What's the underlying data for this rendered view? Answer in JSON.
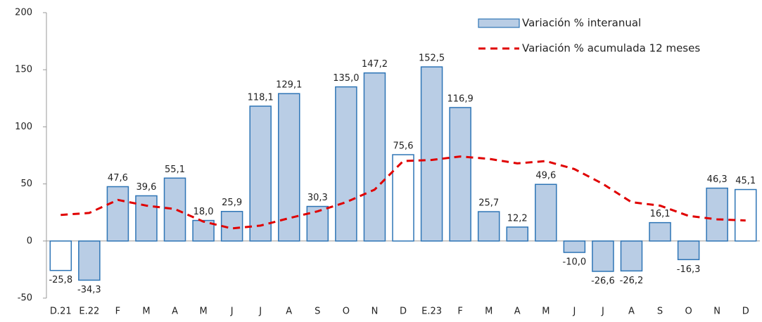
{
  "chart_data": {
    "type": "bar-line",
    "categories": [
      "D.21",
      "E.22",
      "F",
      "M",
      "A",
      "M",
      "J",
      "J",
      "A",
      "S",
      "O",
      "N",
      "D",
      "E.23",
      "F",
      "M",
      "A",
      "M",
      "J",
      "J",
      "A",
      "S",
      "O",
      "N",
      "D"
    ],
    "series": [
      {
        "name": "Variación % interanual",
        "type": "bar",
        "color": "#b9cde5",
        "edge_color": "#2e75b6",
        "colors": [
          "#ffffff",
          "#b9cde5",
          "#b9cde5",
          "#b9cde5",
          "#b9cde5",
          "#b9cde5",
          "#b9cde5",
          "#b9cde5",
          "#b9cde5",
          "#b9cde5",
          "#b9cde5",
          "#b9cde5",
          "#ffffff",
          "#b9cde5",
          "#b9cde5",
          "#b9cde5",
          "#b9cde5",
          "#b9cde5",
          "#b9cde5",
          "#b9cde5",
          "#b9cde5",
          "#b9cde5",
          "#b9cde5",
          "#b9cde5",
          "#ffffff"
        ],
        "values": [
          -25.8,
          -34.3,
          47.6,
          39.6,
          55.1,
          18.0,
          25.9,
          118.1,
          129.1,
          30.3,
          135.0,
          147.2,
          75.6,
          152.5,
          116.9,
          25.7,
          12.2,
          49.6,
          -10.0,
          -26.6,
          -26.2,
          16.1,
          -16.3,
          46.3,
          45.1
        ],
        "value_labels": [
          "-25,8",
          "-34,3",
          "47,6",
          "39,6",
          "55,1",
          "18,0",
          "25,9",
          "118,1",
          "129,1",
          "30,3",
          "135,0",
          "147,2",
          "75,6",
          "152,5",
          "116,9",
          "25,7",
          "12,2",
          "49,6",
          "-10,0",
          "-26,6",
          "-26,2",
          "16,1",
          "-16,3",
          "46,3",
          "45,1"
        ]
      },
      {
        "name": "Variación % acumulada 12 meses",
        "type": "line",
        "color": "#e00000",
        "dashed": true,
        "values": [
          22.8,
          24.6,
          36,
          31,
          28,
          17,
          11,
          13.5,
          20,
          26,
          34,
          45,
          70,
          71,
          74,
          72,
          68,
          70,
          63,
          50,
          34,
          31,
          22,
          19,
          18
        ]
      }
    ],
    "ylim": [
      -50,
      200
    ],
    "yticks": [
      -50,
      0,
      50,
      100,
      150,
      200
    ],
    "grid": false,
    "legend": "top-right"
  }
}
